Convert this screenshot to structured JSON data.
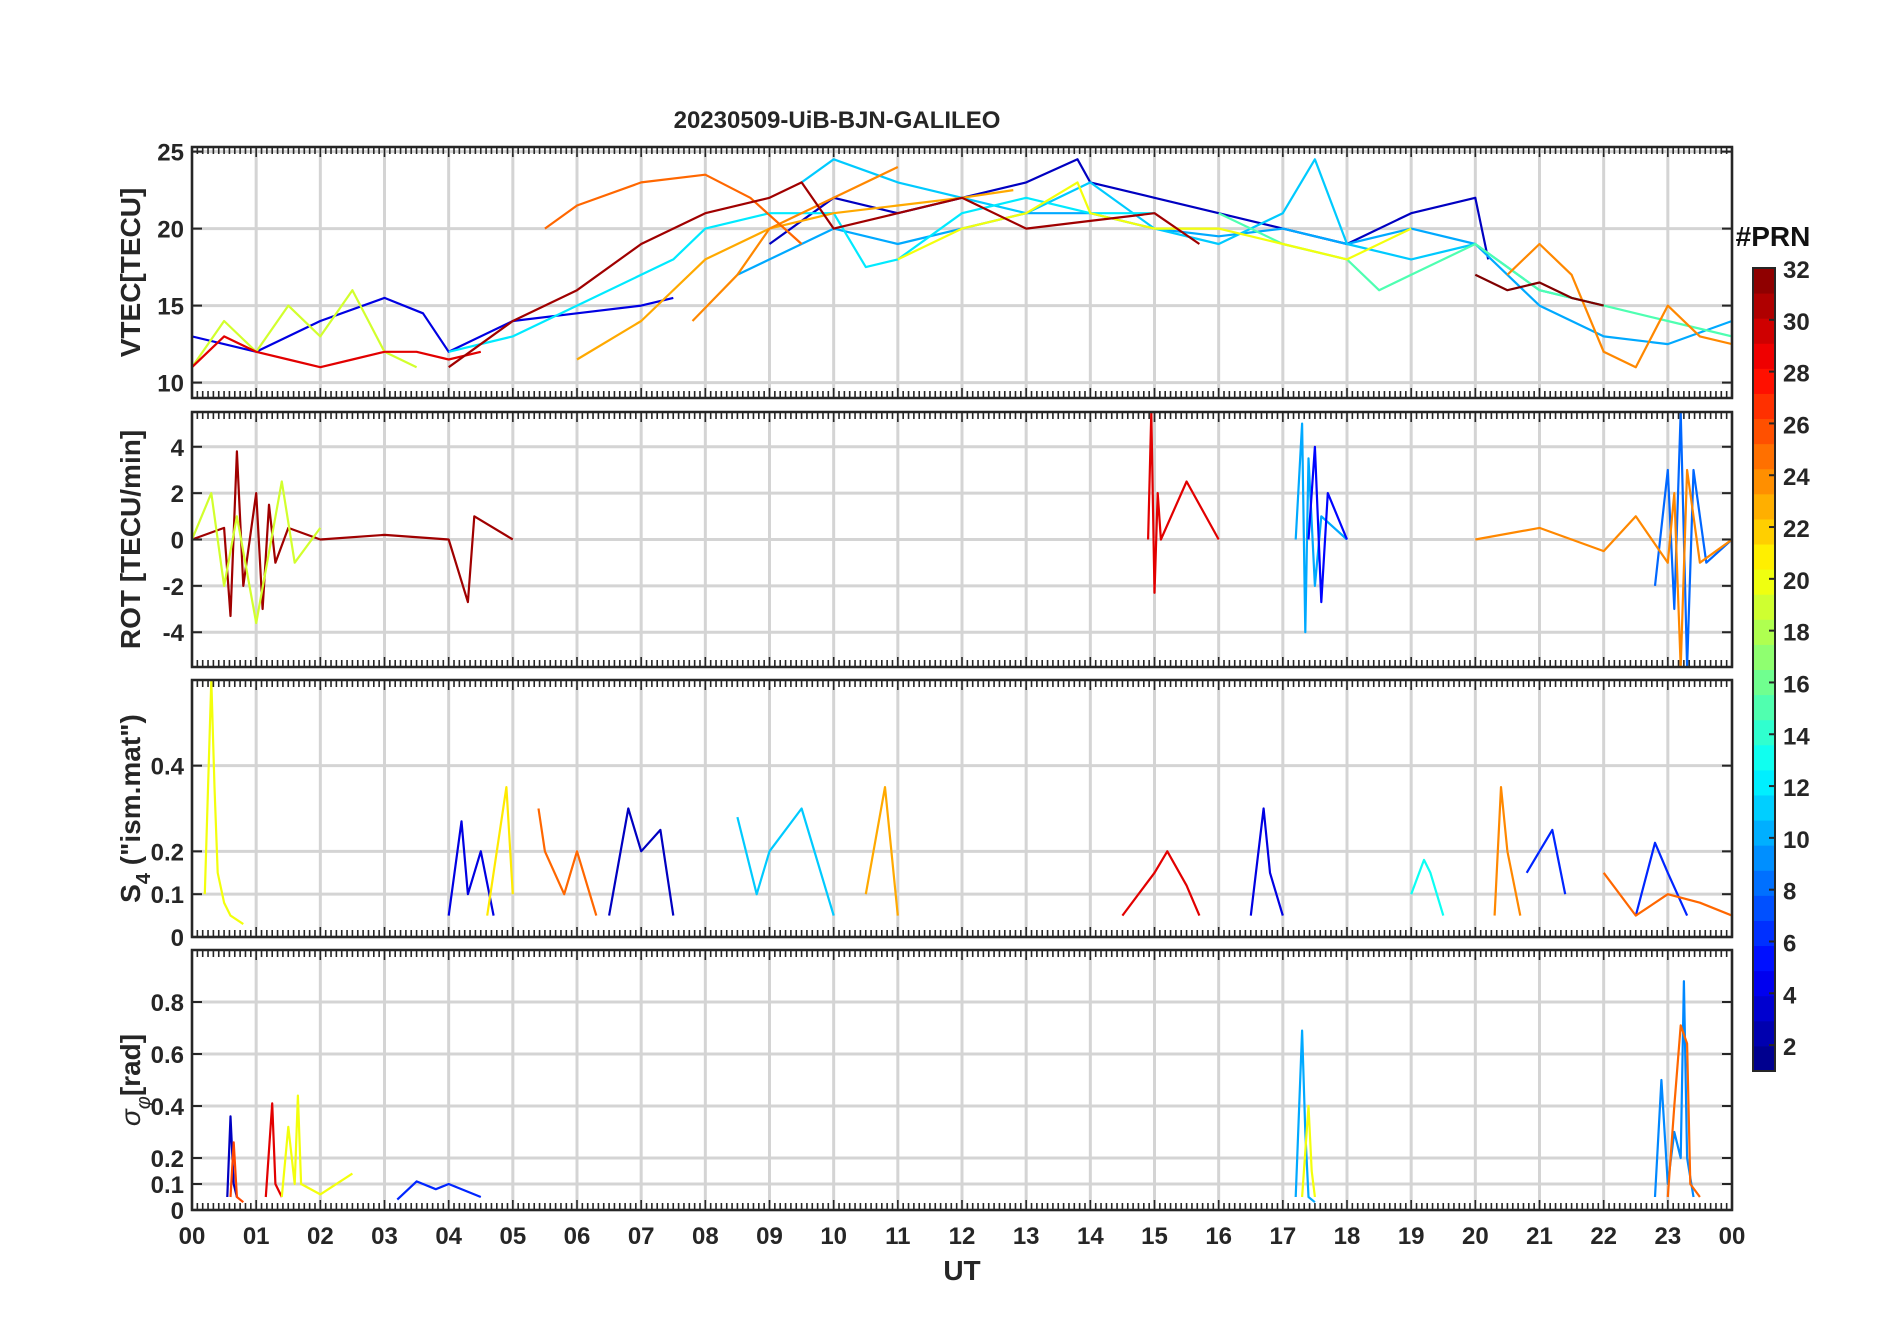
{
  "chart_data": {
    "type": "line",
    "title": "20230509-UiB-BJN-GALILEO",
    "xlabel": "UT",
    "x_range_hours": [
      0,
      24
    ],
    "x_tick_labels": [
      "00",
      "01",
      "02",
      "03",
      "04",
      "05",
      "06",
      "07",
      "08",
      "09",
      "10",
      "11",
      "12",
      "13",
      "14",
      "15",
      "16",
      "17",
      "18",
      "19",
      "20",
      "21",
      "22",
      "23",
      "00"
    ],
    "colorbar": {
      "title": "#PRN",
      "range": [
        1,
        32
      ],
      "levels": 32,
      "tick_labels": [
        "2",
        "4",
        "6",
        "8",
        "10",
        "12",
        "14",
        "16",
        "18",
        "20",
        "22",
        "24",
        "26",
        "28",
        "30",
        "32"
      ]
    },
    "panels": [
      {
        "id": "vtec",
        "ylabel": "VTEC[TECU]",
        "ylim": [
          9,
          25.3
        ],
        "yticks": [
          10,
          15,
          20,
          25
        ],
        "ytick_labels": [
          "10",
          "15",
          "20",
          "25"
        ],
        "series": [
          {
            "prn": 4,
            "x": [
              0,
              1,
              2,
              3,
              3.6,
              4,
              5,
              6,
              7,
              7.5
            ],
            "y": [
              13,
              12,
              14,
              15.5,
              14.5,
              12,
              14,
              14.5,
              15,
              15.5
            ]
          },
          {
            "prn": 3,
            "x": [
              9,
              10,
              11,
              12,
              13,
              13.8,
              14,
              15,
              16,
              17,
              18,
              19,
              20,
              20.2
            ],
            "y": [
              19,
              22,
              21,
              22,
              23,
              24.5,
              23,
              22,
              21,
              20,
              19,
              21,
              22,
              18
            ]
          },
          {
            "prn": 10,
            "x": [
              8.5,
              9,
              10,
              11,
              12,
              13,
              14,
              15,
              16,
              17,
              18,
              19,
              20,
              21,
              22,
              23,
              24
            ],
            "y": [
              17,
              18,
              20,
              19,
              20,
              21,
              21,
              20,
              19.5,
              20,
              19,
              20,
              19,
              15,
              13,
              12.5,
              14
            ]
          },
          {
            "prn": 11,
            "x": [
              9.5,
              10,
              11,
              12,
              13,
              14,
              15,
              16,
              17,
              17.5,
              18,
              19,
              20,
              21,
              22
            ],
            "y": [
              23,
              24.5,
              23,
              22,
              21,
              23,
              20,
              19,
              21,
              24.5,
              19,
              18,
              19,
              16,
              15
            ]
          },
          {
            "prn": 12,
            "x": [
              4,
              5,
              6,
              7,
              7.5,
              8,
              9,
              10,
              10.5,
              11,
              12,
              13,
              14,
              15
            ],
            "y": [
              12,
              13,
              15,
              17,
              18,
              20,
              21,
              21,
              17.5,
              18,
              21,
              22,
              21,
              21
            ]
          },
          {
            "prn": 15,
            "x": [
              16,
              17,
              18,
              18.5,
              19,
              20,
              21,
              22,
              23,
              24
            ],
            "y": [
              21,
              19,
              18,
              16,
              17,
              19,
              16,
              15,
              14,
              13
            ]
          },
          {
            "prn": 19,
            "x": [
              0,
              0.5,
              1,
              1.5,
              2,
              2.5,
              3,
              3.5
            ],
            "y": [
              11,
              14,
              12,
              15,
              13,
              16,
              12,
              11
            ]
          },
          {
            "prn": 20,
            "x": [
              11,
              12,
              13,
              13.8,
              14,
              15,
              16,
              17,
              18,
              19
            ],
            "y": [
              18,
              20,
              21,
              23,
              21,
              20,
              20,
              19,
              18,
              20
            ]
          },
          {
            "prn": 23,
            "x": [
              6,
              7,
              8,
              9,
              10,
              11,
              12,
              12.8
            ],
            "y": [
              11.5,
              14,
              18,
              20,
              21,
              21.5,
              22,
              22.5
            ]
          },
          {
            "prn": 24,
            "x": [
              7.8,
              8.5,
              9,
              10,
              11
            ],
            "y": [
              14,
              17,
              20,
              22,
              24
            ]
          },
          {
            "prn": 25,
            "x": [
              5.5,
              6,
              7,
              8,
              8.7,
              9.5
            ],
            "y": [
              20,
              21.5,
              23,
              23.5,
              22,
              19
            ]
          },
          {
            "prn": 24,
            "x": [
              20.5,
              21,
              21.5,
              22,
              22.5,
              23,
              23.5,
              24
            ],
            "y": [
              17,
              19,
              17,
              12,
              11,
              15,
              13,
              12.5
            ]
          },
          {
            "prn": 29,
            "x": [
              0,
              0.5,
              1,
              1.5,
              2,
              2.5,
              3,
              3.5,
              4,
              4.5
            ],
            "y": [
              11,
              13,
              12,
              11.5,
              11,
              11.5,
              12,
              12,
              11.5,
              12
            ]
          },
          {
            "prn": 31,
            "x": [
              4,
              5,
              6,
              7,
              8,
              9,
              9.5,
              10,
              11,
              12,
              13,
              14,
              15,
              15.7
            ],
            "y": [
              11,
              14,
              16,
              19,
              21,
              22,
              23,
              20,
              21,
              22,
              20,
              20.5,
              21,
              19
            ]
          },
          {
            "prn": 32,
            "x": [
              20,
              20.5,
              21,
              21.5,
              22
            ],
            "y": [
              17,
              16,
              16.5,
              15.5,
              15
            ]
          }
        ]
      },
      {
        "id": "rot",
        "ylabel": "ROT [TECU/min]",
        "ylim": [
          -5.5,
          5.5
        ],
        "yticks": [
          -4,
          -2,
          0,
          2,
          4
        ],
        "ytick_labels": [
          "-4",
          "-2",
          "0",
          "2",
          "4"
        ],
        "series": [
          {
            "prn": 31,
            "x": [
              0,
              0.5,
              0.6,
              0.7,
              0.8,
              1,
              1.1,
              1.2,
              1.3,
              1.5,
              2,
              3,
              4,
              4.3,
              4.4,
              5
            ],
            "y": [
              0,
              0.5,
              -3.3,
              3.8,
              -2,
              2,
              -3,
              1.5,
              -1,
              0.5,
              0,
              0.2,
              0,
              -2.7,
              1,
              0
            ]
          },
          {
            "prn": 19,
            "x": [
              0,
              0.3,
              0.5,
              0.7,
              1,
              1.4,
              1.6,
              2
            ],
            "y": [
              0,
              2,
              -2,
              1,
              -3.6,
              2.5,
              -1,
              0.5
            ]
          },
          {
            "prn": 29,
            "x": [
              14.9,
              14.95,
              15,
              15.05,
              15.1,
              15.5,
              16
            ],
            "y": [
              0,
              5.5,
              -2.3,
              2,
              0,
              2.5,
              0
            ]
          },
          {
            "prn": 10,
            "x": [
              17.2,
              17.3,
              17.35,
              17.4,
              17.5,
              17.6,
              18
            ],
            "y": [
              0,
              5,
              -4,
              3.5,
              -2,
              1,
              0
            ]
          },
          {
            "prn": 5,
            "x": [
              17.4,
              17.5,
              17.6,
              17.7,
              18
            ],
            "y": [
              0,
              4,
              -2.7,
              2,
              0
            ]
          },
          {
            "prn": 8,
            "x": [
              22.8,
              23,
              23.1,
              23.2,
              23.3,
              23.4,
              23.6,
              24
            ],
            "y": [
              -2,
              3,
              -3,
              5.5,
              -5.5,
              3,
              -1,
              0
            ]
          },
          {
            "prn": 24,
            "x": [
              20,
              21,
              22,
              22.5,
              23,
              23.1,
              23.2,
              23.3,
              23.5,
              24
            ],
            "y": [
              0,
              0.5,
              -0.5,
              1,
              -1,
              2,
              -5.5,
              3,
              -1,
              0
            ]
          }
        ]
      },
      {
        "id": "s4",
        "ylabel": "S4 (\"ism.mat\")",
        "ylabel_main": "S",
        "ylabel_sub": "4",
        "ylabel_rest": " (\"ism.mat\")",
        "ylim": [
          0,
          0.6
        ],
        "yticks": [
          0,
          0.1,
          0.2,
          0.4
        ],
        "ytick_labels": [
          "0",
          "0.1",
          "0.2",
          "0.4"
        ],
        "series": [
          {
            "prn": 20,
            "x": [
              0.2,
              0.3,
              0.35,
              0.4,
              0.5,
              0.6,
              0.8
            ],
            "y": [
              0.1,
              0.6,
              0.35,
              0.15,
              0.08,
              0.05,
              0.03
            ]
          },
          {
            "prn": 4,
            "x": [
              4,
              4.2,
              4.3,
              4.5,
              4.7
            ],
            "y": [
              0.05,
              0.27,
              0.1,
              0.2,
              0.05
            ]
          },
          {
            "prn": 21,
            "x": [
              4.6,
              4.8,
              4.9,
              5
            ],
            "y": [
              0.05,
              0.25,
              0.35,
              0.1
            ]
          },
          {
            "prn": 25,
            "x": [
              5.4,
              5.5,
              5.8,
              6,
              6.3
            ],
            "y": [
              0.3,
              0.2,
              0.1,
              0.2,
              0.05
            ]
          },
          {
            "prn": 3,
            "x": [
              6.5,
              6.8,
              7,
              7.3,
              7.5
            ],
            "y": [
              0.05,
              0.3,
              0.2,
              0.25,
              0.05
            ]
          },
          {
            "prn": 11,
            "x": [
              8.5,
              8.8,
              9,
              9.5,
              10
            ],
            "y": [
              0.28,
              0.1,
              0.2,
              0.3,
              0.05
            ]
          },
          {
            "prn": 23,
            "x": [
              10.5,
              10.8,
              10.9,
              11
            ],
            "y": [
              0.1,
              0.35,
              0.2,
              0.05
            ]
          },
          {
            "prn": 29,
            "x": [
              14.5,
              15,
              15.2,
              15.5,
              15.7
            ],
            "y": [
              0.05,
              0.15,
              0.2,
              0.12,
              0.05
            ]
          },
          {
            "prn": 4,
            "x": [
              16.5,
              16.7,
              16.8,
              17
            ],
            "y": [
              0.05,
              0.3,
              0.15,
              0.05
            ]
          },
          {
            "prn": 13,
            "x": [
              19,
              19.2,
              19.3,
              19.5
            ],
            "y": [
              0.1,
              0.18,
              0.15,
              0.05
            ]
          },
          {
            "prn": 24,
            "x": [
              20.3,
              20.4,
              20.5,
              20.7
            ],
            "y": [
              0.05,
              0.35,
              0.2,
              0.05
            ]
          },
          {
            "prn": 6,
            "x": [
              20.8,
              21,
              21.2,
              21.4
            ],
            "y": [
              0.15,
              0.2,
              0.25,
              0.1
            ]
          },
          {
            "prn": 6,
            "x": [
              22.5,
              22.8,
              23,
              23.3
            ],
            "y": [
              0.05,
              0.22,
              0.15,
              0.05
            ]
          },
          {
            "prn": 25,
            "x": [
              22,
              22.5,
              23,
              23.5,
              24
            ],
            "y": [
              0.15,
              0.05,
              0.1,
              0.08,
              0.05
            ]
          }
        ]
      },
      {
        "id": "sigma_phi",
        "ylabel": "σφ[rad]",
        "ylabel_main": "σ",
        "ylabel_sub": "φ",
        "ylabel_rest": "[rad]",
        "ylim": [
          0,
          1.0
        ],
        "yticks": [
          0,
          0.1,
          0.2,
          0.4,
          0.6,
          0.8
        ],
        "ytick_labels": [
          "0",
          "0.1",
          "0.2",
          "0.4",
          "0.6",
          "0.8"
        ],
        "series": [
          {
            "prn": 3,
            "x": [
              0.55,
              0.6,
              0.65,
              0.7
            ],
            "y": [
              0.05,
              0.36,
              0.1,
              0.05
            ]
          },
          {
            "prn": 26,
            "x": [
              0.6,
              0.65,
              0.7,
              0.8
            ],
            "y": [
              0.05,
              0.26,
              0.05,
              0.03
            ]
          },
          {
            "prn": 29,
            "x": [
              1.15,
              1.25,
              1.3,
              1.4
            ],
            "y": [
              0.05,
              0.41,
              0.1,
              0.05
            ]
          },
          {
            "prn": 20,
            "x": [
              1.4,
              1.5,
              1.6,
              1.65,
              1.7,
              2,
              2.5
            ],
            "y": [
              0.05,
              0.32,
              0.1,
              0.44,
              0.1,
              0.06,
              0.14
            ]
          },
          {
            "prn": 6,
            "x": [
              3.2,
              3.5,
              3.8,
              4,
              4.5
            ],
            "y": [
              0.04,
              0.11,
              0.08,
              0.1,
              0.05
            ]
          },
          {
            "prn": 10,
            "x": [
              17.2,
              17.3,
              17.35,
              17.4,
              17.5
            ],
            "y": [
              0.05,
              0.69,
              0.3,
              0.05,
              0.03
            ]
          },
          {
            "prn": 20,
            "x": [
              17.3,
              17.4,
              17.45,
              17.5
            ],
            "y": [
              0.05,
              0.4,
              0.15,
              0.05
            ]
          },
          {
            "prn": 9,
            "x": [
              22.8,
              22.9,
              23.0,
              23.1,
              23.2,
              23.25,
              23.3,
              23.4
            ],
            "y": [
              0.05,
              0.5,
              0.1,
              0.3,
              0.2,
              0.88,
              0.2,
              0.05
            ]
          },
          {
            "prn": 25,
            "x": [
              23.0,
              23.1,
              23.2,
              23.3,
              23.35,
              23.5
            ],
            "y": [
              0.05,
              0.4,
              0.71,
              0.64,
              0.1,
              0.05
            ]
          }
        ]
      }
    ]
  }
}
